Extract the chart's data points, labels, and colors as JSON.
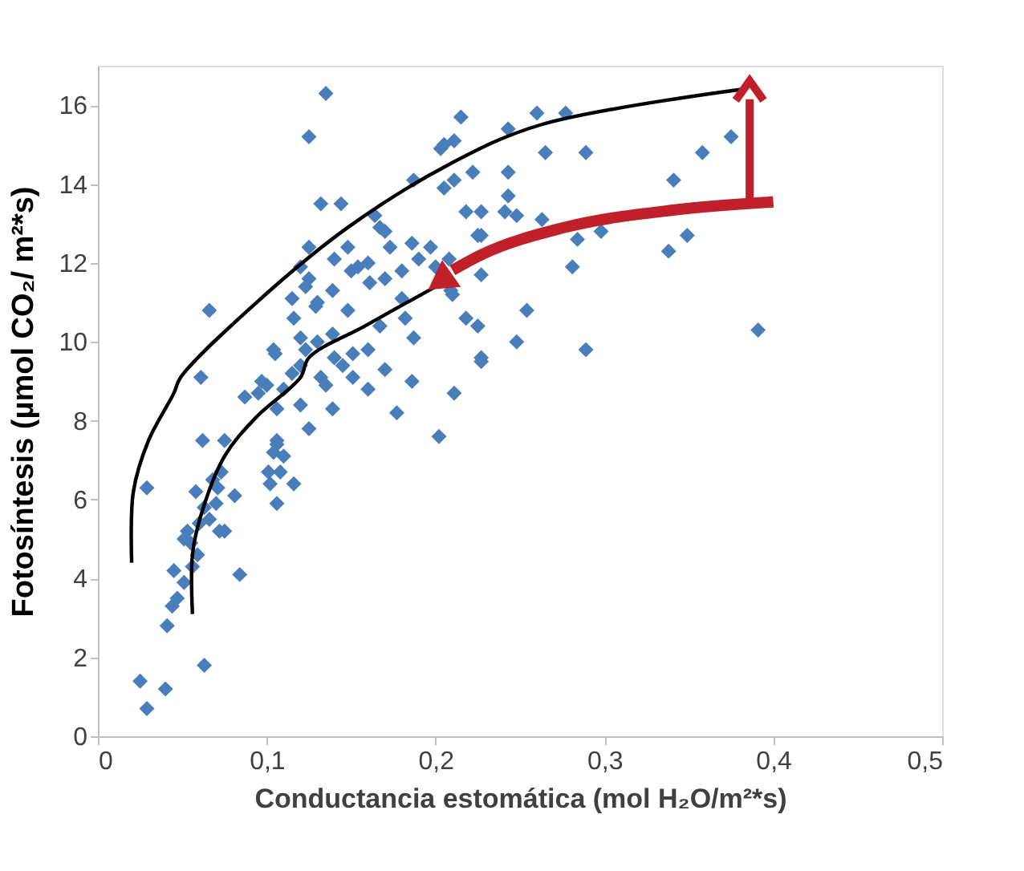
{
  "chart_data": {
    "type": "scatter",
    "xlabel": "Conductancia estomática (mol H₂O/m²*s)",
    "ylabel": "Fotosíntesis (µmol CO₂/ m²*s)",
    "xlim": [
      0,
      0.5
    ],
    "xticks": [
      {
        "value": 0,
        "label": "0"
      },
      {
        "value": 0.1,
        "label": "0,1"
      },
      {
        "value": 0.2,
        "label": "0,2"
      },
      {
        "value": 0.3,
        "label": "0,3"
      },
      {
        "value": 0.4,
        "label": "0,4"
      },
      {
        "value": 0.5,
        "label": "0,5"
      }
    ],
    "ylim": [
      0,
      17
    ],
    "yticks": [
      0,
      2,
      4,
      6,
      8,
      10,
      12,
      14,
      16
    ],
    "grid": false,
    "legend": false,
    "series": [
      {
        "type": "scatter",
        "marker": "diamond",
        "color": "#4a7ebb",
        "x": [
          0.025,
          0.029,
          0.04,
          0.063,
          0.029,
          0.041,
          0.044,
          0.047,
          0.045,
          0.051,
          0.056,
          0.055,
          0.053,
          0.06,
          0.063,
          0.066,
          0.07,
          0.075,
          0.084,
          0.062,
          0.075,
          0.068,
          0.061,
          0.066,
          0.081,
          0.073,
          0.058,
          0.071,
          0.072,
          0.051,
          0.059,
          0.135,
          0.125,
          0.132,
          0.144,
          0.164,
          0.17,
          0.187,
          0.203,
          0.104,
          0.12,
          0.123,
          0.125,
          0.148,
          0.154,
          0.139,
          0.161,
          0.173,
          0.186,
          0.197,
          0.129,
          0.148,
          0.116,
          0.139,
          0.167,
          0.182,
          0.187,
          0.123,
          0.151,
          0.17,
          0.097,
          0.12,
          0.132,
          0.186,
          0.167,
          0.227,
          0.227,
          0.21,
          0.18,
          0.218,
          0.225,
          0.227,
          0.211,
          0.177,
          0.202,
          0.125,
          0.106,
          0.139,
          0.151,
          0.215,
          0.205,
          0.211,
          0.26,
          0.277,
          0.243,
          0.265,
          0.289,
          0.375,
          0.358,
          0.341,
          0.222,
          0.243,
          0.205,
          0.211,
          0.218,
          0.227,
          0.243,
          0.241,
          0.248,
          0.263,
          0.284,
          0.298,
          0.349,
          0.338,
          0.225,
          0.208,
          0.281,
          0.209,
          0.254,
          0.248,
          0.289,
          0.227,
          0.391,
          0.087,
          0.106,
          0.106,
          0.104,
          0.11,
          0.101,
          0.108,
          0.102,
          0.106,
          0.116,
          0.11,
          0.115,
          0.12,
          0.13,
          0.14,
          0.145,
          0.16,
          0.13,
          0.115,
          0.12,
          0.135,
          0.16,
          0.1,
          0.095,
          0.105,
          0.125,
          0.14,
          0.15,
          0.16,
          0.18,
          0.19,
          0.2,
          0.17
        ],
        "values": [
          1.4,
          0.7,
          1.2,
          1.8,
          6.3,
          2.8,
          3.3,
          3.5,
          4.2,
          3.9,
          4.3,
          4.9,
          5.2,
          5.4,
          5.8,
          5.5,
          5.9,
          5.2,
          4.1,
          7.5,
          7.5,
          6.5,
          9.1,
          10.8,
          6.1,
          6.7,
          6.2,
          6.3,
          5.2,
          5.0,
          4.6,
          16.3,
          15.2,
          13.5,
          13.5,
          13.2,
          12.8,
          14.1,
          14.9,
          9.8,
          11.9,
          11.4,
          12.4,
          12.4,
          11.9,
          11.3,
          11.5,
          12.4,
          12.5,
          12.4,
          10.9,
          10.8,
          10.6,
          10.2,
          10.4,
          10.6,
          10.1,
          9.8,
          9.7,
          9.3,
          9.0,
          9.4,
          9.1,
          9.0,
          12.9,
          12.7,
          11.7,
          11.2,
          11.1,
          10.6,
          10.4,
          9.6,
          8.7,
          8.2,
          7.6,
          7.8,
          7.5,
          8.3,
          9.1,
          15.7,
          15.0,
          15.1,
          15.8,
          15.8,
          15.4,
          14.8,
          14.8,
          15.2,
          14.8,
          14.1,
          14.3,
          14.3,
          13.9,
          14.1,
          13.3,
          13.3,
          13.7,
          13.3,
          13.2,
          13.1,
          12.6,
          12.8,
          12.7,
          12.3,
          12.7,
          12.1,
          11.9,
          11.3,
          10.8,
          10.0,
          9.8,
          9.5,
          10.3,
          8.6,
          8.3,
          7.4,
          7.2,
          7.1,
          6.7,
          6.7,
          6.4,
          5.9,
          6.4,
          8.8,
          9.2,
          10.1,
          10.0,
          9.6,
          9.4,
          9.8,
          11.0,
          11.1,
          8.4,
          8.9,
          8.8,
          8.9,
          8.7,
          9.7,
          11.6,
          12.1,
          11.8,
          12.0,
          11.8,
          12.1,
          11.9,
          11.6
        ]
      },
      {
        "type": "line",
        "marker": "none",
        "color": "#000000",
        "x": [
          0.02,
          0.021,
          0.03,
          0.045,
          0.049,
          0.094,
          0.148,
          0.208,
          0.262,
          0.381
        ],
        "values": [
          4.4,
          6.2,
          7.5,
          8.7,
          9.1,
          11.0,
          12.9,
          14.5,
          15.5,
          16.4
        ]
      },
      {
        "type": "line",
        "marker": "none",
        "color": "#000000",
        "x": [
          0.056,
          0.056,
          0.061,
          0.075,
          0.094,
          0.12,
          0.125,
          0.158,
          0.2
        ],
        "values": [
          3.1,
          4.6,
          5.6,
          7.1,
          8.1,
          9.1,
          9.6,
          10.4,
          11.4
        ]
      }
    ]
  }
}
